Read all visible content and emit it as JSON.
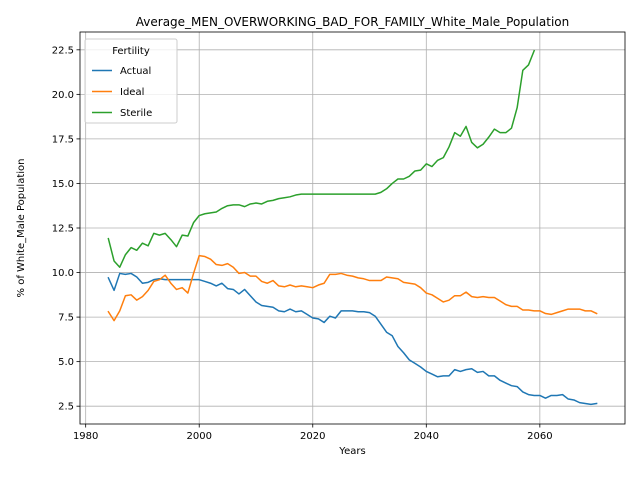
{
  "chart_data": {
    "type": "line",
    "title": "Average_MEN_OVERWORKING_BAD_FOR_FAMILY_White_Male_Population",
    "xlabel": "Years",
    "ylabel": "% of White_Male Population",
    "xlim": [
      1979,
      2075
    ],
    "ylim": [
      1.5,
      23.5
    ],
    "xticks": [
      1980,
      2000,
      2020,
      2040,
      2060
    ],
    "yticks": [
      2.5,
      5.0,
      7.5,
      10.0,
      12.5,
      15.0,
      17.5,
      20.0,
      22.5
    ],
    "xtick_labels": [
      "1980",
      "2000",
      "2020",
      "2040",
      "2060"
    ],
    "ytick_labels": [
      "2.5",
      "5.0",
      "7.5",
      "10.0",
      "12.5",
      "15.0",
      "17.5",
      "20.0",
      "22.5"
    ],
    "grid": true,
    "legend": {
      "title": "Fertility",
      "placement": "upper-left"
    },
    "series": [
      {
        "name": "Actual",
        "color": "#1f77b4",
        "points": [
          [
            1984,
            9.7
          ],
          [
            1985,
            9.0
          ],
          [
            1986,
            9.95
          ],
          [
            1987,
            9.9
          ],
          [
            1988,
            9.95
          ],
          [
            1989,
            9.75
          ],
          [
            1990,
            9.4
          ],
          [
            1991,
            9.45
          ],
          [
            1992,
            9.6
          ],
          [
            1993,
            9.65
          ],
          [
            1994,
            9.6
          ],
          [
            1995,
            9.6
          ],
          [
            1996,
            9.6
          ],
          [
            1997,
            9.6
          ],
          [
            1998,
            9.6
          ],
          [
            1999,
            9.6
          ],
          [
            2000,
            9.6
          ],
          [
            2001,
            9.5
          ],
          [
            2002,
            9.4
          ],
          [
            2003,
            9.25
          ],
          [
            2004,
            9.4
          ],
          [
            2005,
            9.1
          ],
          [
            2006,
            9.05
          ],
          [
            2007,
            8.8
          ],
          [
            2008,
            9.05
          ],
          [
            2009,
            8.7
          ],
          [
            2010,
            8.35
          ],
          [
            2011,
            8.15
          ],
          [
            2012,
            8.1
          ],
          [
            2013,
            8.05
          ],
          [
            2014,
            7.85
          ],
          [
            2015,
            7.8
          ],
          [
            2016,
            7.95
          ],
          [
            2017,
            7.8
          ],
          [
            2018,
            7.85
          ],
          [
            2019,
            7.65
          ],
          [
            2020,
            7.45
          ],
          [
            2021,
            7.4
          ],
          [
            2022,
            7.2
          ],
          [
            2023,
            7.55
          ],
          [
            2024,
            7.45
          ],
          [
            2025,
            7.85
          ],
          [
            2026,
            7.85
          ],
          [
            2027,
            7.85
          ],
          [
            2028,
            7.8
          ],
          [
            2029,
            7.8
          ],
          [
            2030,
            7.75
          ],
          [
            2031,
            7.55
          ],
          [
            2032,
            7.1
          ],
          [
            2033,
            6.65
          ],
          [
            2034,
            6.45
          ],
          [
            2035,
            5.85
          ],
          [
            2036,
            5.5
          ],
          [
            2037,
            5.1
          ],
          [
            2038,
            4.9
          ],
          [
            2039,
            4.7
          ],
          [
            2040,
            4.45
          ],
          [
            2041,
            4.3
          ],
          [
            2042,
            4.15
          ],
          [
            2043,
            4.2
          ],
          [
            2044,
            4.2
          ],
          [
            2045,
            4.55
          ],
          [
            2046,
            4.45
          ],
          [
            2047,
            4.55
          ],
          [
            2048,
            4.6
          ],
          [
            2049,
            4.4
          ],
          [
            2050,
            4.45
          ],
          [
            2051,
            4.2
          ],
          [
            2052,
            4.2
          ],
          [
            2053,
            3.95
          ],
          [
            2054,
            3.8
          ],
          [
            2055,
            3.65
          ],
          [
            2056,
            3.6
          ],
          [
            2057,
            3.3
          ],
          [
            2058,
            3.15
          ],
          [
            2059,
            3.1
          ],
          [
            2060,
            3.1
          ],
          [
            2061,
            2.95
          ],
          [
            2062,
            3.1
          ],
          [
            2063,
            3.1
          ],
          [
            2064,
            3.15
          ],
          [
            2065,
            2.9
          ],
          [
            2066,
            2.85
          ],
          [
            2067,
            2.7
          ],
          [
            2068,
            2.65
          ],
          [
            2069,
            2.6
          ],
          [
            2070,
            2.65
          ]
        ]
      },
      {
        "name": "Ideal",
        "color": "#ff7f0e",
        "points": [
          [
            1984,
            7.8
          ],
          [
            1985,
            7.3
          ],
          [
            1986,
            7.85
          ],
          [
            1987,
            8.7
          ],
          [
            1988,
            8.75
          ],
          [
            1989,
            8.45
          ],
          [
            1990,
            8.65
          ],
          [
            1991,
            9.0
          ],
          [
            1992,
            9.5
          ],
          [
            1993,
            9.6
          ],
          [
            1994,
            9.85
          ],
          [
            1995,
            9.4
          ],
          [
            1996,
            9.05
          ],
          [
            1997,
            9.15
          ],
          [
            1998,
            8.85
          ],
          [
            1999,
            9.95
          ],
          [
            2000,
            10.95
          ],
          [
            2001,
            10.9
          ],
          [
            2002,
            10.75
          ],
          [
            2003,
            10.45
          ],
          [
            2004,
            10.4
          ],
          [
            2005,
            10.5
          ],
          [
            2006,
            10.3
          ],
          [
            2007,
            9.95
          ],
          [
            2008,
            10.0
          ],
          [
            2009,
            9.8
          ],
          [
            2010,
            9.8
          ],
          [
            2011,
            9.5
          ],
          [
            2012,
            9.4
          ],
          [
            2013,
            9.55
          ],
          [
            2014,
            9.25
          ],
          [
            2015,
            9.2
          ],
          [
            2016,
            9.3
          ],
          [
            2017,
            9.2
          ],
          [
            2018,
            9.25
          ],
          [
            2019,
            9.2
          ],
          [
            2020,
            9.15
          ],
          [
            2021,
            9.3
          ],
          [
            2022,
            9.4
          ],
          [
            2023,
            9.9
          ],
          [
            2024,
            9.9
          ],
          [
            2025,
            9.95
          ],
          [
            2026,
            9.85
          ],
          [
            2027,
            9.8
          ],
          [
            2028,
            9.7
          ],
          [
            2029,
            9.65
          ],
          [
            2030,
            9.55
          ],
          [
            2031,
            9.55
          ],
          [
            2032,
            9.55
          ],
          [
            2033,
            9.75
          ],
          [
            2034,
            9.7
          ],
          [
            2035,
            9.65
          ],
          [
            2036,
            9.45
          ],
          [
            2037,
            9.4
          ],
          [
            2038,
            9.35
          ],
          [
            2039,
            9.15
          ],
          [
            2040,
            8.85
          ],
          [
            2041,
            8.75
          ],
          [
            2042,
            8.55
          ],
          [
            2043,
            8.35
          ],
          [
            2044,
            8.45
          ],
          [
            2045,
            8.7
          ],
          [
            2046,
            8.7
          ],
          [
            2047,
            8.9
          ],
          [
            2048,
            8.65
          ],
          [
            2049,
            8.6
          ],
          [
            2050,
            8.65
          ],
          [
            2051,
            8.6
          ],
          [
            2052,
            8.6
          ],
          [
            2053,
            8.4
          ],
          [
            2054,
            8.2
          ],
          [
            2055,
            8.1
          ],
          [
            2056,
            8.1
          ],
          [
            2057,
            7.9
          ],
          [
            2058,
            7.9
          ],
          [
            2059,
            7.85
          ],
          [
            2060,
            7.85
          ],
          [
            2061,
            7.7
          ],
          [
            2062,
            7.65
          ],
          [
            2063,
            7.75
          ],
          [
            2064,
            7.85
          ],
          [
            2065,
            7.95
          ],
          [
            2066,
            7.95
          ],
          [
            2067,
            7.95
          ],
          [
            2068,
            7.85
          ],
          [
            2069,
            7.85
          ],
          [
            2070,
            7.7
          ]
        ]
      },
      {
        "name": "Sterile",
        "color": "#2ca02c",
        "points": [
          [
            1984,
            11.9
          ],
          [
            1985,
            10.65
          ],
          [
            1986,
            10.3
          ],
          [
            1987,
            11.0
          ],
          [
            1988,
            11.4
          ],
          [
            1989,
            11.25
          ],
          [
            1990,
            11.65
          ],
          [
            1991,
            11.5
          ],
          [
            1992,
            12.2
          ],
          [
            1993,
            12.1
          ],
          [
            1994,
            12.2
          ],
          [
            1995,
            11.85
          ],
          [
            1996,
            11.45
          ],
          [
            1997,
            12.1
          ],
          [
            1998,
            12.05
          ],
          [
            1999,
            12.8
          ],
          [
            2000,
            13.2
          ],
          [
            2001,
            13.3
          ],
          [
            2002,
            13.35
          ],
          [
            2003,
            13.4
          ],
          [
            2004,
            13.6
          ],
          [
            2005,
            13.75
          ],
          [
            2006,
            13.8
          ],
          [
            2007,
            13.8
          ],
          [
            2008,
            13.7
          ],
          [
            2009,
            13.85
          ],
          [
            2010,
            13.9
          ],
          [
            2011,
            13.85
          ],
          [
            2012,
            14.0
          ],
          [
            2013,
            14.05
          ],
          [
            2014,
            14.15
          ],
          [
            2015,
            14.2
          ],
          [
            2016,
            14.25
          ],
          [
            2017,
            14.35
          ],
          [
            2018,
            14.4
          ],
          [
            2019,
            14.4
          ],
          [
            2020,
            14.4
          ],
          [
            2021,
            14.4
          ],
          [
            2022,
            14.4
          ],
          [
            2023,
            14.4
          ],
          [
            2024,
            14.4
          ],
          [
            2025,
            14.4
          ],
          [
            2026,
            14.4
          ],
          [
            2027,
            14.4
          ],
          [
            2028,
            14.4
          ],
          [
            2029,
            14.4
          ],
          [
            2030,
            14.4
          ],
          [
            2031,
            14.4
          ],
          [
            2032,
            14.5
          ],
          [
            2033,
            14.7
          ],
          [
            2034,
            15.0
          ],
          [
            2035,
            15.25
          ],
          [
            2036,
            15.25
          ],
          [
            2037,
            15.4
          ],
          [
            2038,
            15.7
          ],
          [
            2039,
            15.75
          ],
          [
            2040,
            16.1
          ],
          [
            2041,
            15.95
          ],
          [
            2042,
            16.3
          ],
          [
            2043,
            16.45
          ],
          [
            2044,
            17.05
          ],
          [
            2045,
            17.85
          ],
          [
            2046,
            17.65
          ],
          [
            2047,
            18.2
          ],
          [
            2048,
            17.3
          ],
          [
            2049,
            17.0
          ],
          [
            2050,
            17.2
          ],
          [
            2051,
            17.6
          ],
          [
            2052,
            18.05
          ],
          [
            2053,
            17.85
          ],
          [
            2054,
            17.85
          ],
          [
            2055,
            18.1
          ],
          [
            2056,
            19.25
          ],
          [
            2057,
            21.35
          ],
          [
            2058,
            21.65
          ],
          [
            2059,
            22.45
          ]
        ]
      }
    ]
  }
}
